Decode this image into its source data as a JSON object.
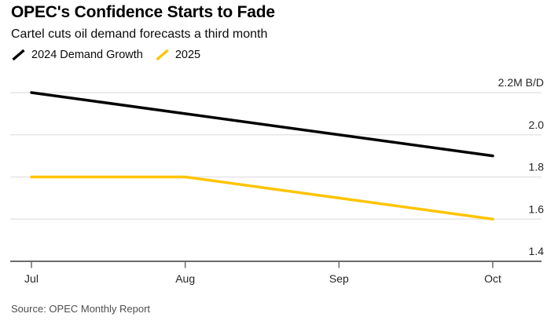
{
  "header": {
    "title": "OPEC's Confidence Starts to Fade",
    "subtitle": "Cartel cuts oil demand forecasts a third month"
  },
  "legend": {
    "items": [
      {
        "label": "2024 Demand Growth",
        "color": "#000000"
      },
      {
        "label": "2025",
        "color": "#ffc400"
      }
    ]
  },
  "source": "Source: OPEC Monthly Report",
  "colors": {
    "grid": "#e6e6e6",
    "axis": "#6b6b6b",
    "tick_text": "#262626",
    "series_2024": "#000000",
    "series_2025": "#ffc400",
    "background": "#ffffff"
  },
  "chart_data": {
    "type": "line",
    "title": "OPEC's Confidence Starts to Fade",
    "subtitle": "Cartel cuts oil demand forecasts a third month",
    "categories": [
      "Jul",
      "Aug",
      "Sep",
      "Oct"
    ],
    "series": [
      {
        "name": "2024 Demand Growth",
        "color": "#000000",
        "values": [
          2.2,
          2.1,
          2.0,
          1.9
        ]
      },
      {
        "name": "2025",
        "color": "#ffc400",
        "values": [
          1.8,
          1.8,
          1.7,
          1.6
        ]
      }
    ],
    "xlabel": "",
    "ylabel": "M B/D",
    "ylim": [
      1.4,
      2.2
    ],
    "y_ticks": [
      {
        "value": 2.2,
        "label": "2.2M B/D"
      },
      {
        "value": 2.0,
        "label": "2.0"
      },
      {
        "value": 1.8,
        "label": "1.8"
      },
      {
        "value": 1.6,
        "label": "1.6"
      },
      {
        "value": 1.4,
        "label": "1.4"
      }
    ],
    "grid": true,
    "legend_position": "top-left",
    "y_axis_side": "right",
    "source": "Source: OPEC Monthly Report"
  }
}
